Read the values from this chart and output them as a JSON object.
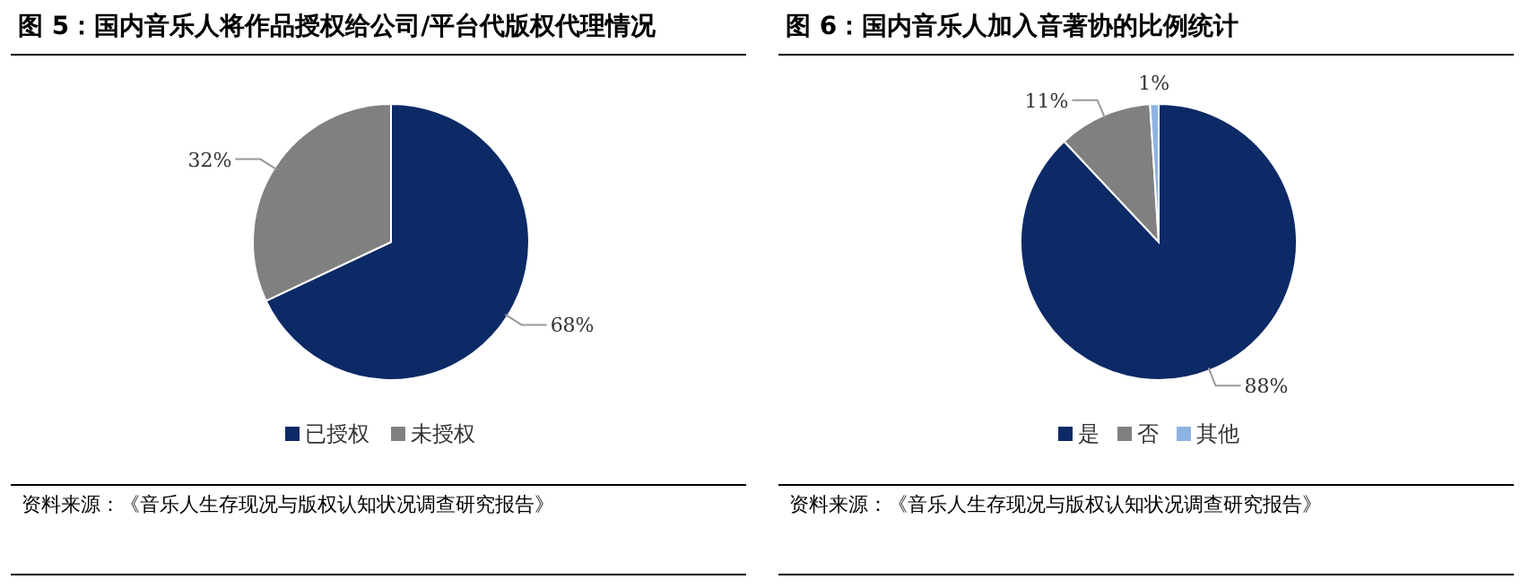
{
  "chart_data": [
    {
      "type": "pie",
      "title": "图 5：国内音乐人将作品授权给公司/平台代版权代理情况",
      "categories": [
        "已授权",
        "未授权"
      ],
      "values": [
        68,
        32
      ],
      "colors": [
        "#0c2a66",
        "#808080"
      ],
      "value_labels": [
        "68%",
        "32%"
      ],
      "legend": "bottom",
      "annotations": [
        "资料来源：《音乐人生存现况与版权认知状况调查研究报告》"
      ]
    },
    {
      "type": "pie",
      "title": "图 6：国内音乐人加入音著协的比例统计",
      "categories": [
        "是",
        "否",
        "其他"
      ],
      "values": [
        88,
        11,
        1
      ],
      "colors": [
        "#0c2a66",
        "#808080",
        "#8db3e2"
      ],
      "value_labels": [
        "88%",
        "11%",
        "1%"
      ],
      "legend": "bottom",
      "annotations": [
        "资料来源：《音乐人生存现况与版权认知状况调查研究报告》"
      ]
    }
  ]
}
